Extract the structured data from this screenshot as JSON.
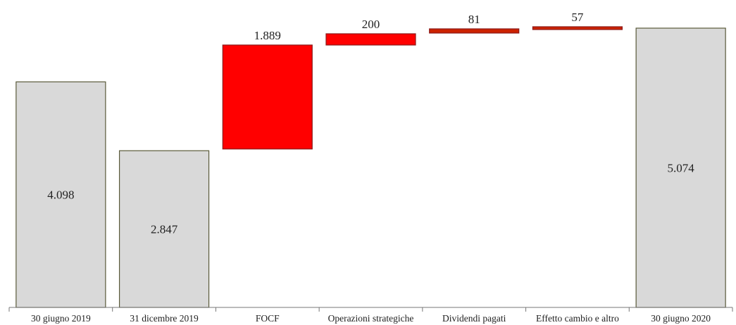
{
  "chart_data": {
    "type": "bar",
    "subtype": "waterfall",
    "categories": [
      "30 giugno 2019",
      "31 dicembre 2019",
      "FOCF",
      "Operazioni strategiche",
      "Dividendi pagati",
      "Effetto cambio e altro",
      "30 giugno 2020"
    ],
    "values": [
      4.098,
      2.847,
      1.889,
      200,
      81,
      57,
      5.074
    ],
    "value_labels": [
      "4.098",
      "2.847",
      "1.889",
      "200",
      "81",
      "57",
      "5.074"
    ],
    "bar_kind": [
      "total",
      "total",
      "step",
      "step",
      "step",
      "step",
      "total"
    ],
    "colors": {
      "total_fill": "#d9d9d9",
      "total_stroke": "#5a5a3a",
      "step_fill": "#ff0000",
      "step_fill_dark": "#cc2200",
      "step_stroke": "#8b1a1a"
    },
    "title": "",
    "xlabel": "",
    "ylabel": "",
    "grid": false,
    "legend": false
  }
}
